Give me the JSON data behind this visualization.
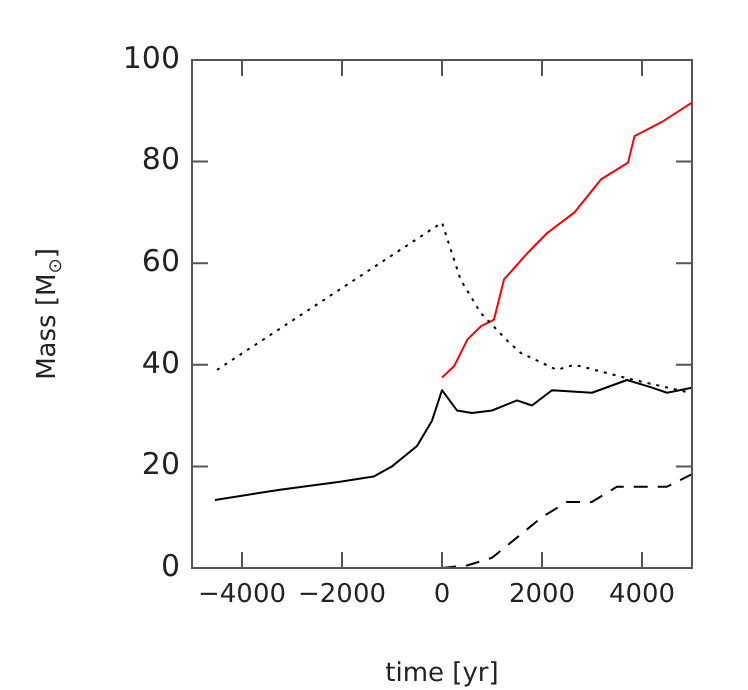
{
  "chart_data": {
    "type": "line",
    "xlabel": "time [yr]",
    "ylabel": "Mass [M$_{⊙}$]",
    "xlim": [
      -5000,
      5000
    ],
    "xticks": [
      -4000,
      -2000,
      0,
      2000,
      4000
    ],
    "ylim": [
      0,
      100
    ],
    "yticks": [
      0,
      20,
      40,
      60,
      80,
      100
    ],
    "grid": false,
    "legend": false,
    "marker": "none",
    "series": [
      {
        "color": "#000000",
        "line_style": "dotted",
        "x": [
          -4500,
          0,
          370,
          775,
          1310,
          1580,
          2300,
          2650,
          3850,
          5000
        ],
        "values": [
          39,
          68,
          56.8,
          50.2,
          44.7,
          42.3,
          39,
          40,
          37,
          34.4
        ]
      },
      {
        "color": "#ff0000",
        "line_style": "solid",
        "x": [
          0,
          240,
          510,
          780,
          1040,
          1240,
          1710,
          2110,
          2650,
          3180,
          3720,
          3850,
          4380,
          5000
        ],
        "values": [
          37.5,
          39.7,
          45,
          47.6,
          48.9,
          56.8,
          62,
          66,
          70,
          76.5,
          79.8,
          85,
          87.7,
          91.6
        ]
      },
      {
        "color": "#000000",
        "line_style": "solid",
        "x": [
          -4540,
          -3240,
          -2040,
          -1370,
          -1000,
          -500,
          -200,
          0,
          300,
          600,
          1000,
          1500,
          1800,
          2200,
          3000,
          3700,
          4200,
          4500,
          5000
        ],
        "values": [
          13.4,
          15.4,
          17,
          18,
          20,
          24,
          29,
          35,
          31,
          30.5,
          31,
          33,
          32,
          35,
          34.5,
          37,
          35.5,
          34.5,
          35.5
        ]
      },
      {
        "color": "#000000",
        "line_style": "dashed",
        "x": [
          0,
          500,
          1000,
          1500,
          2000,
          2500,
          3000,
          3500,
          4000,
          4500,
          5000
        ],
        "values": [
          0,
          0.5,
          2,
          6,
          10,
          13,
          13,
          16,
          16,
          16,
          18.5
        ]
      }
    ]
  }
}
